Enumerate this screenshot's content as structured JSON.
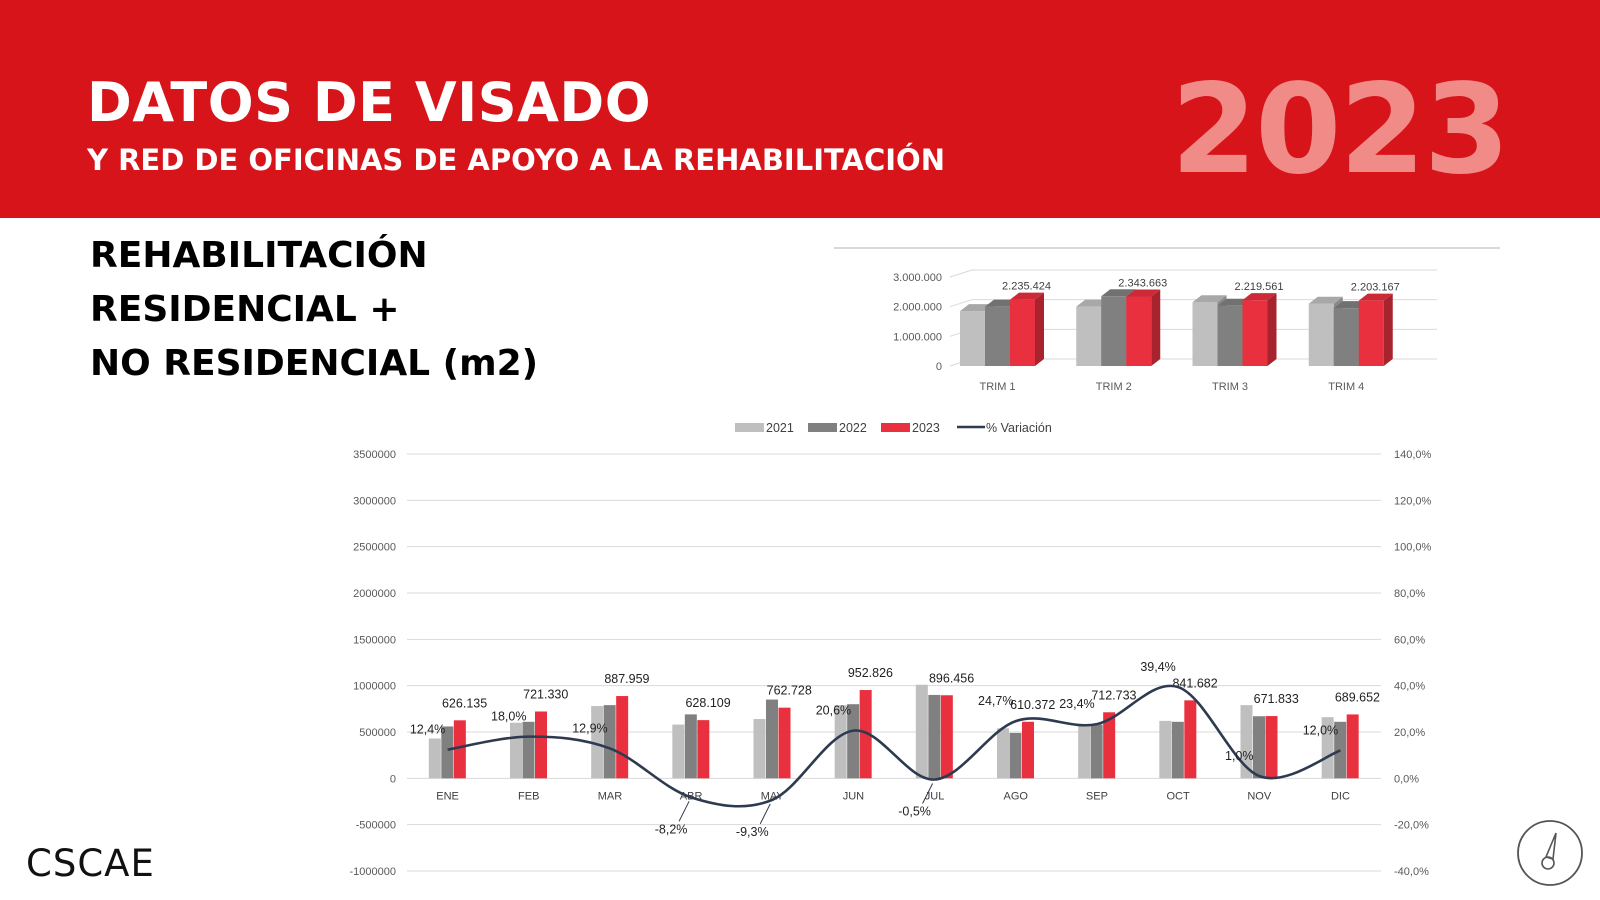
{
  "header": {
    "title": "DATOS DE VISADO",
    "subtitle": "Y RED DE OFICINAS DE APOYO A LA REHABILITACIÓN",
    "year": "2023"
  },
  "section_title": [
    "REHABILITACIÓN",
    "RESIDENCIAL +",
    "NO RESIDENCIAL (m2)"
  ],
  "logo": {
    "text": "CSCAE"
  },
  "colors": {
    "banner": "#d7141a",
    "s2021": "#bfbfbf",
    "s2022": "#808080",
    "s2023": "#e8303f",
    "line": "#2e3a4f"
  },
  "chart_data": [
    {
      "type": "bar",
      "title": "",
      "categories": [
        "TRIM 1",
        "TRIM 2",
        "TRIM 3",
        "TRIM 4"
      ],
      "series": [
        {
          "name": "",
          "values": [
            1850000,
            2000000,
            2150000,
            2100000
          ]
        },
        {
          "name": "",
          "values": [
            2000000,
            2350000,
            2030000,
            1950000
          ]
        },
        {
          "name": "",
          "values": [
            2235424,
            2343663,
            2219561,
            2203167
          ]
        }
      ],
      "data_labels": [
        "2.235.424",
        "2.343.663",
        "2.219.561",
        "2.203.167"
      ],
      "y_ticks": [
        "0",
        "1.000.000",
        "2.000.000",
        "3.000.000"
      ],
      "ylim": [
        0,
        3000000
      ]
    },
    {
      "type": "bar",
      "title": "",
      "categories": [
        "ENE",
        "FEB",
        "MAR",
        "ABR",
        "MAY",
        "JUN",
        "JUL",
        "AGO",
        "SEP",
        "OCT",
        "NOV",
        "DIC"
      ],
      "series": [
        {
          "name": "2021",
          "values": [
            430000,
            600000,
            780000,
            580000,
            640000,
            790000,
            1010000,
            540000,
            580000,
            620000,
            790000,
            660000
          ]
        },
        {
          "name": "2022",
          "values": [
            560000,
            610000,
            790000,
            690000,
            850000,
            800000,
            900000,
            490000,
            580000,
            610000,
            670000,
            610000
          ]
        },
        {
          "name": "2023",
          "values": [
            626135,
            721330,
            887959,
            628109,
            762728,
            952826,
            896456,
            610372,
            712733,
            841682,
            671833,
            689652
          ]
        }
      ],
      "data_labels": [
        "626.135",
        "721.330",
        "887.959",
        "628.109",
        "762.728",
        "952.826",
        "896.456",
        "610.372",
        "712.733",
        "841.682",
        "671.833",
        "689.652"
      ],
      "line_series": {
        "name": "% Variación",
        "axis": "right",
        "values": [
          12.4,
          18.0,
          12.9,
          -8.2,
          -9.3,
          20.6,
          -0.5,
          24.7,
          23.4,
          39.4,
          1.0,
          12.0
        ],
        "labels": [
          "12,4%",
          "18,0%",
          "12,9%",
          "-8,2%",
          "-9,3%",
          "20,6%",
          "-0,5%",
          "24,7%",
          "23,4%",
          "39,4%",
          "1,0%",
          "12,0%"
        ]
      },
      "y_ticks": [
        "-1000000",
        "-500000",
        "0",
        "500000",
        "1000000",
        "1500000",
        "2000000",
        "2500000",
        "3000000",
        "3500000"
      ],
      "y2_ticks": [
        "-40,0%",
        "-20,0%",
        "0,0%",
        "20,0%",
        "40,0%",
        "60,0%",
        "80,0%",
        "100,0%",
        "120,0%",
        "140,0%"
      ],
      "ylim": [
        -1000000,
        3500000
      ],
      "y2lim": [
        -40,
        140
      ],
      "legend": "top"
    }
  ]
}
